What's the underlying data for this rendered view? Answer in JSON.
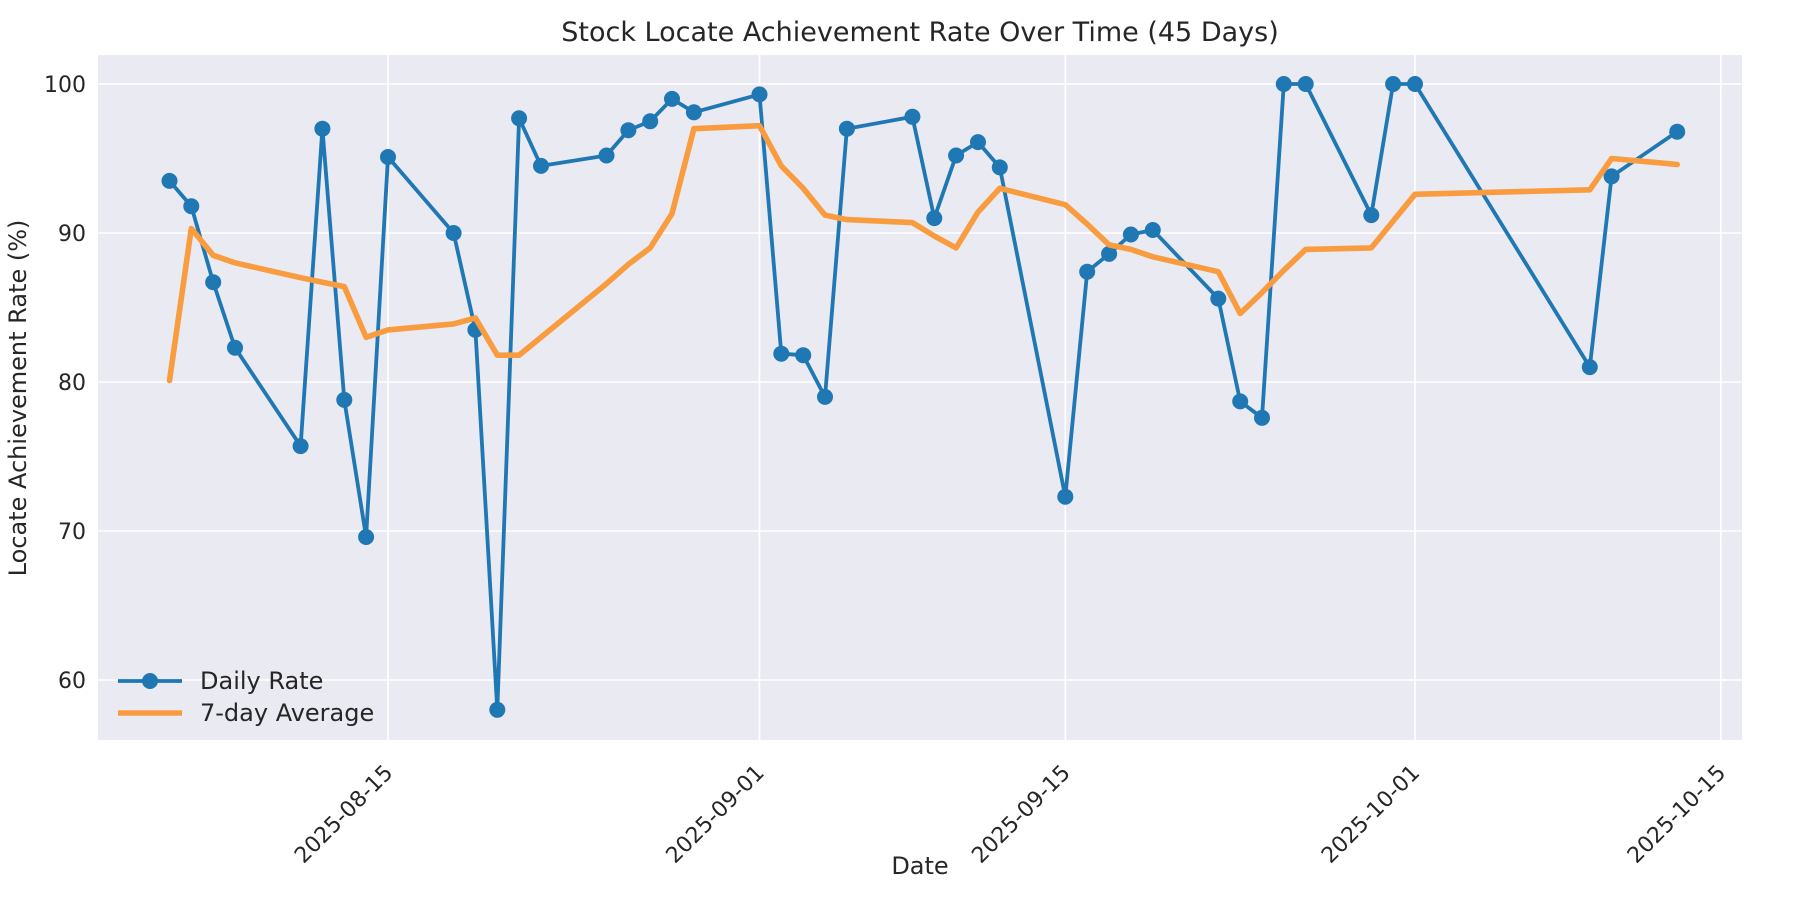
{
  "figure": {
    "background": "#ffffff"
  },
  "chart_data": {
    "type": "line",
    "title": "Stock Locate Achievement Rate Over Time (45 Days)",
    "xlabel": "Date",
    "ylabel": "Locate Achievement Rate (%)",
    "x": [
      "2025-08-05",
      "2025-08-06",
      "2025-08-07",
      "2025-08-08",
      "2025-08-11",
      "2025-08-12",
      "2025-08-13",
      "2025-08-14",
      "2025-08-15",
      "2025-08-18",
      "2025-08-19",
      "2025-08-20",
      "2025-08-21",
      "2025-08-22",
      "2025-08-25",
      "2025-08-26",
      "2025-08-27",
      "2025-08-28",
      "2025-08-29",
      "2025-09-01",
      "2025-09-02",
      "2025-09-03",
      "2025-09-04",
      "2025-09-05",
      "2025-09-08",
      "2025-09-09",
      "2025-09-10",
      "2025-09-11",
      "2025-09-12",
      "2025-09-15",
      "2025-09-16",
      "2025-09-17",
      "2025-09-18",
      "2025-09-19",
      "2025-09-22",
      "2025-09-23",
      "2025-09-24",
      "2025-09-25",
      "2025-09-26",
      "2025-09-29",
      "2025-09-30",
      "2025-10-01",
      "2025-10-09",
      "2025-10-10",
      "2025-10-13"
    ],
    "series": [
      {
        "name": "Daily Rate",
        "color": "#1f77b4",
        "marker": "circle",
        "line_width": 3.8,
        "marker_radius": 8,
        "values": [
          93.5,
          91.8,
          86.7,
          82.3,
          75.7,
          97.0,
          78.8,
          69.6,
          95.1,
          90.0,
          83.5,
          58.0,
          97.7,
          94.5,
          95.2,
          96.9,
          97.5,
          99.0,
          98.1,
          99.3,
          81.9,
          81.8,
          79.0,
          97.0,
          97.8,
          91.0,
          95.2,
          96.1,
          94.4,
          72.3,
          87.4,
          88.6,
          89.9,
          90.2,
          85.6,
          78.7,
          77.6,
          100.0,
          100.0,
          91.2,
          100.0,
          100.0,
          81.0,
          93.8,
          96.8
        ]
      },
      {
        "name": "7-day Average",
        "color": "#f89c3f",
        "marker": "none",
        "line_width": 5.6,
        "marker_radius": 0,
        "values": [
          80.1,
          90.3,
          88.5,
          88.0,
          87.0,
          86.7,
          86.4,
          83.0,
          83.5,
          83.9,
          84.3,
          81.8,
          81.8,
          83.0,
          86.6,
          87.9,
          89.0,
          91.3,
          97.0,
          97.2,
          94.5,
          93.0,
          91.2,
          90.9,
          90.7,
          89.8,
          89.0,
          91.4,
          93.0,
          91.9,
          90.6,
          89.2,
          88.9,
          88.4,
          87.4,
          84.6,
          86.0,
          87.5,
          88.9,
          89.0,
          90.8,
          92.6,
          92.9,
          95.0,
          94.6
        ]
      }
    ],
    "ylim": [
      55.9,
      102.0
    ],
    "y_ticks": [
      100,
      90,
      80,
      70,
      60
    ],
    "x_ticks": [
      {
        "date": "2025-08-15",
        "label": "2025-08-15"
      },
      {
        "date": "2025-09-01",
        "label": "2025-09-01"
      },
      {
        "date": "2025-09-15",
        "label": "2025-09-15"
      },
      {
        "date": "2025-10-01",
        "label": "2025-10-01"
      },
      {
        "date": "2025-10-15",
        "label": "2025-10-15"
      }
    ],
    "grid": true,
    "plot_bg": "#eaeaf2",
    "grid_color": "#ffffff",
    "text_color": "#262626",
    "legend_position": "lower-left"
  }
}
